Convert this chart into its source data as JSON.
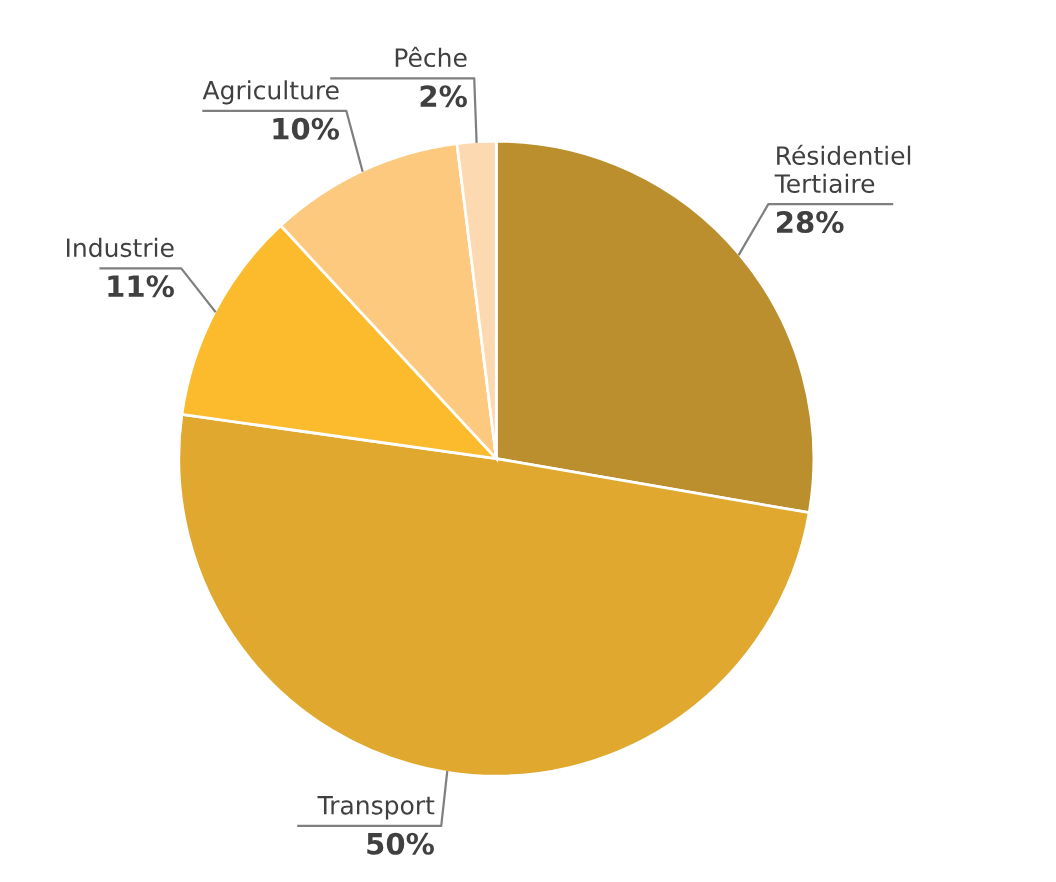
{
  "chart_data": {
    "type": "pie",
    "categories": [
      "Résidentiel\nTertiaire",
      "Transport",
      "Industrie",
      "Agriculture",
      "Pêche"
    ],
    "values": [
      28,
      50,
      11,
      10,
      2
    ],
    "colors": [
      "#bb8f2e",
      "#e0a82e",
      "#fbbb2c",
      "#fdc97e",
      "#fcd9b0"
    ],
    "value_labels": [
      "28%",
      "50%",
      "11%",
      "10%",
      "2%"
    ]
  }
}
